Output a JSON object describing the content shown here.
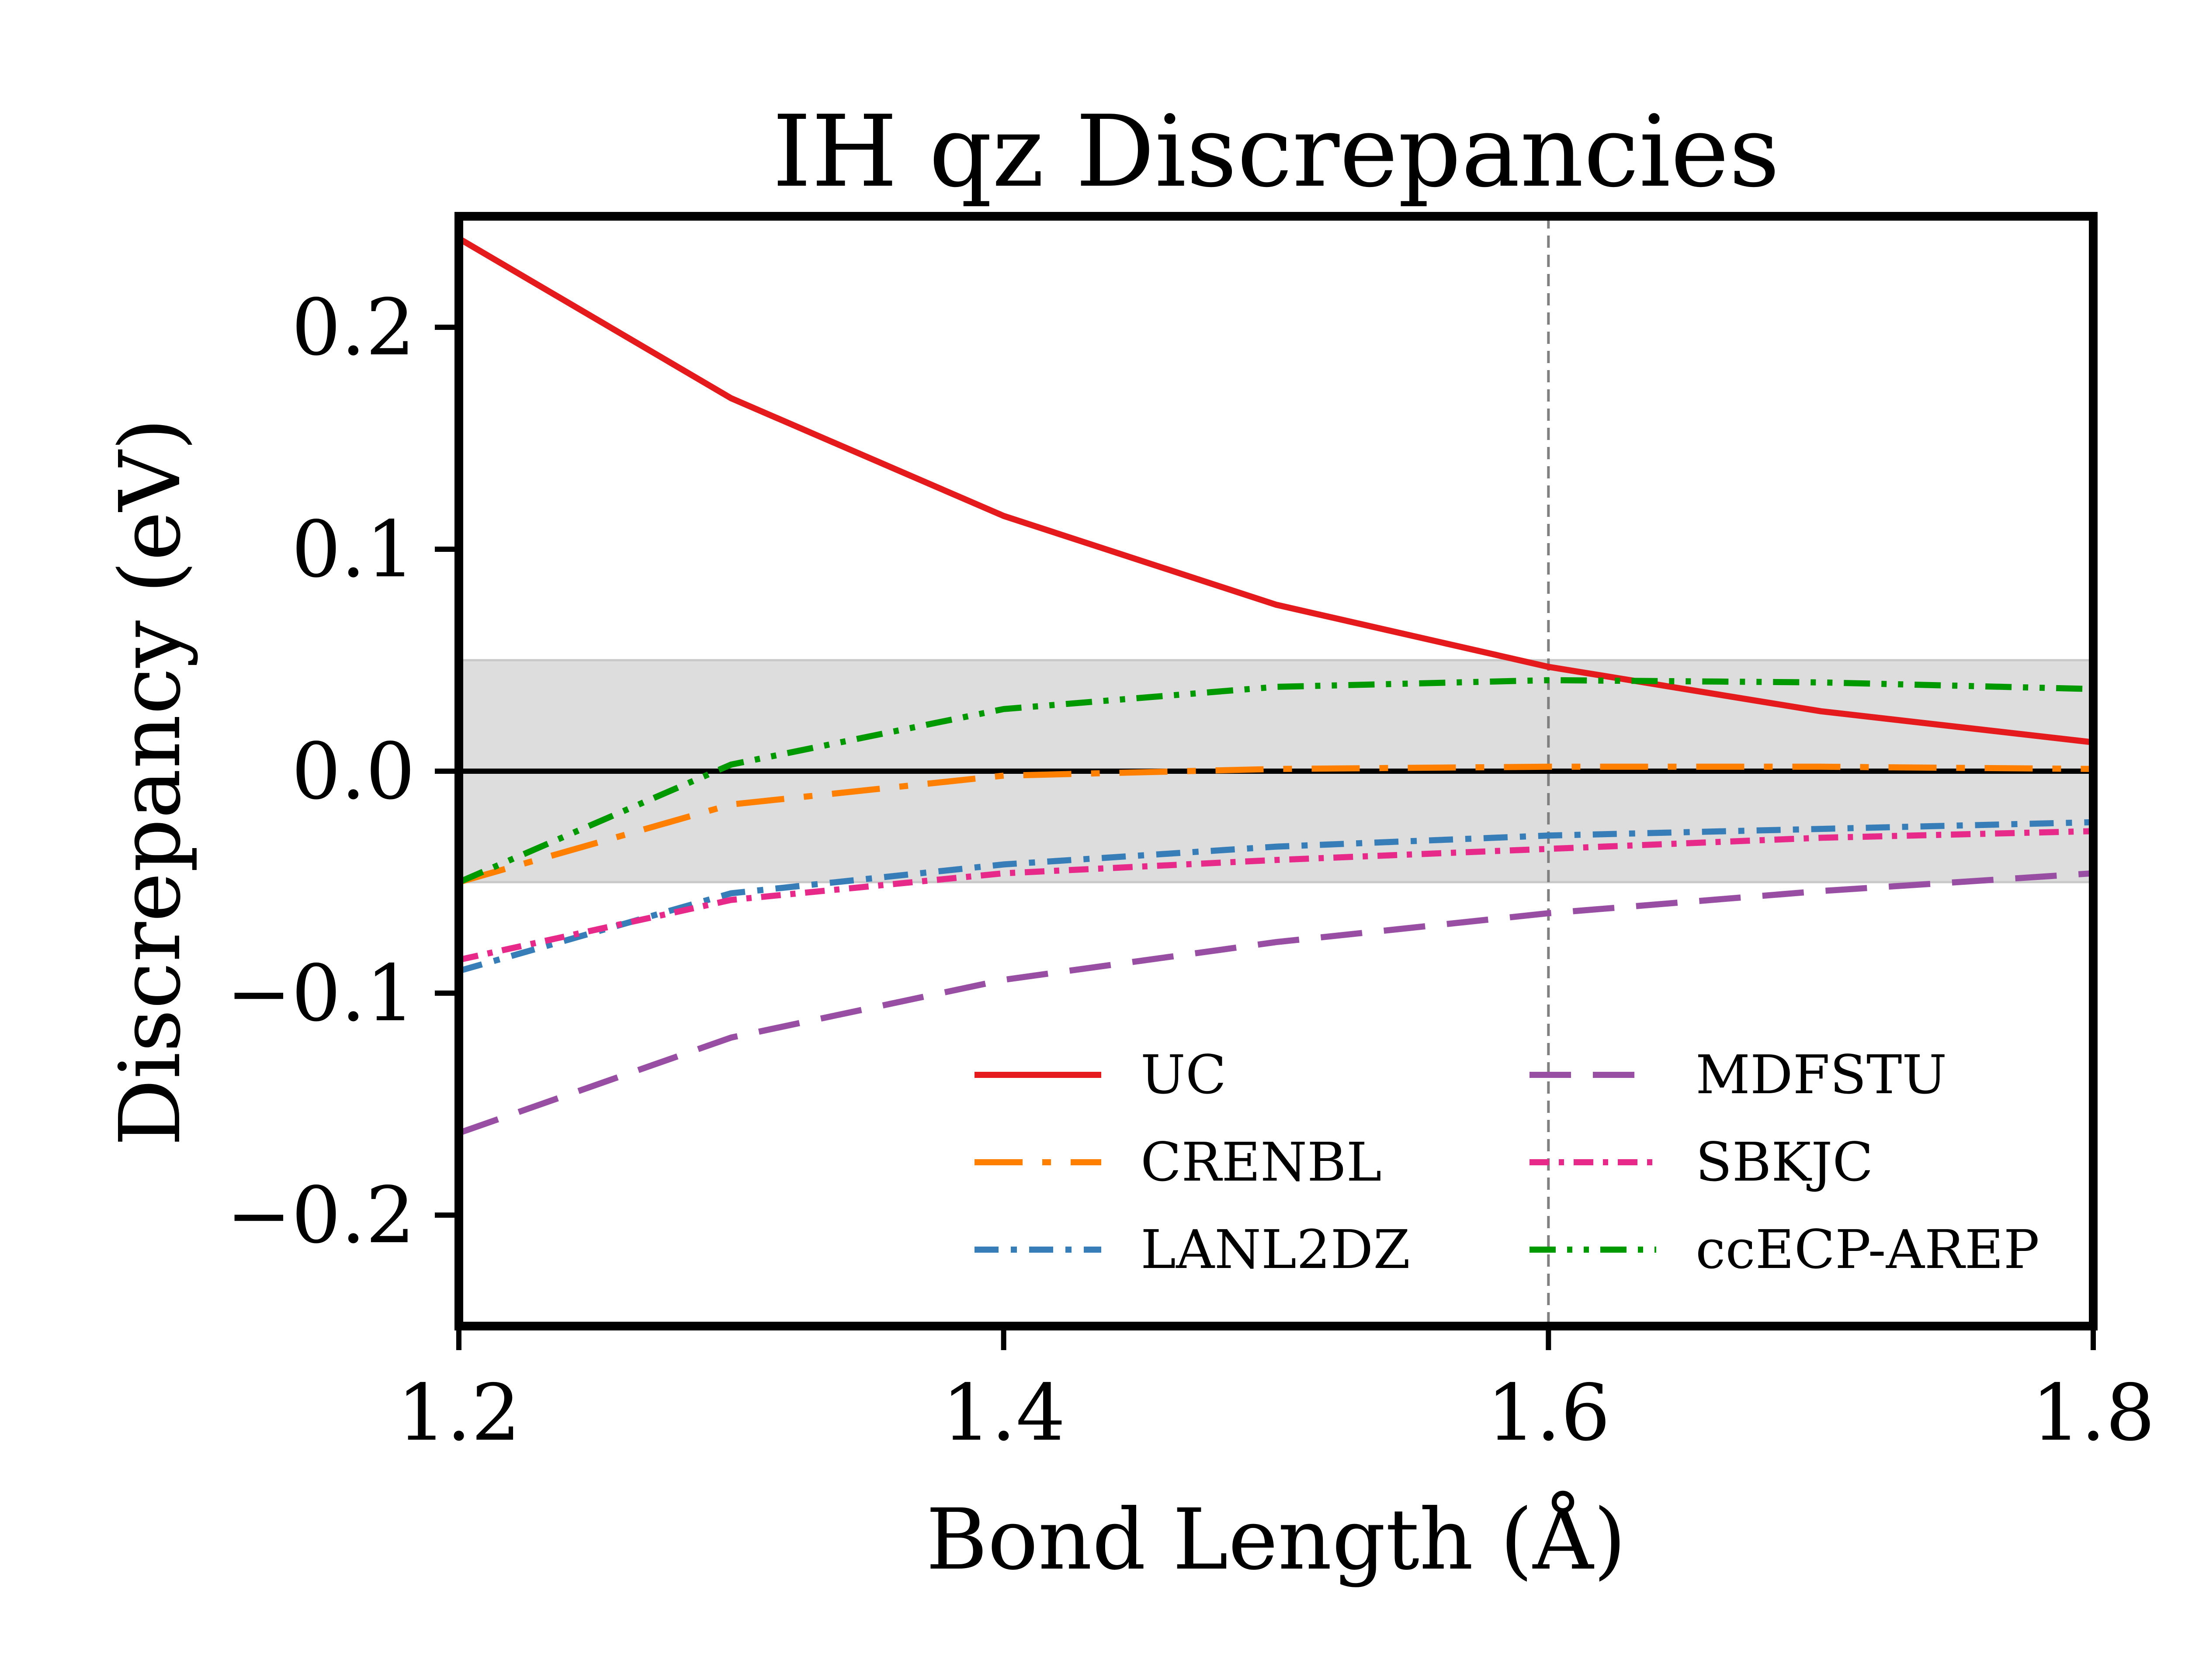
{
  "chart_data": {
    "type": "line",
    "title": "IH qz Discrepancies",
    "xlabel": "Bond Length (Å)",
    "ylabel": "Discrepancy (eV)",
    "xlim": [
      1.2,
      1.8
    ],
    "ylim": [
      -0.25,
      0.25
    ],
    "xticks": [
      1.2,
      1.4,
      1.6,
      1.8
    ],
    "xtick_labels": [
      "1.2",
      "1.4",
      "1.6",
      "1.8"
    ],
    "yticks": [
      -0.2,
      -0.1,
      0.0,
      0.1,
      0.2
    ],
    "ytick_labels": [
      "−0.2",
      "−0.1",
      "0.0",
      "0.1",
      "0.2"
    ],
    "reference_band": [
      -0.05,
      0.05
    ],
    "reference_band_color": "#dddddd",
    "zero_line": 0.0,
    "vertical_reference_x": 1.6,
    "vertical_reference_color": "#808080",
    "grid": false,
    "legend_position": "lower-right",
    "legend_columns": 2,
    "x": [
      1.2,
      1.3,
      1.4,
      1.5,
      1.6,
      1.7,
      1.8
    ],
    "series": [
      {
        "name": "UC",
        "color": "#e41a1c",
        "dash": "solid",
        "values": [
          0.24,
          0.168,
          0.115,
          0.075,
          0.047,
          0.027,
          0.013
        ]
      },
      {
        "name": "CRENBL",
        "color": "#ff7f00",
        "dash": "long-dash-dot",
        "values": [
          -0.05,
          -0.015,
          -0.002,
          0.001,
          0.002,
          0.002,
          0.001
        ]
      },
      {
        "name": "LANL2DZ",
        "color": "#377eb8",
        "dash": "dash-dot",
        "values": [
          -0.09,
          -0.055,
          -0.042,
          -0.034,
          -0.029,
          -0.026,
          -0.023
        ]
      },
      {
        "name": "MDFSTU",
        "color": "#984ea3",
        "dash": "dashed",
        "values": [
          -0.163,
          -0.12,
          -0.094,
          -0.077,
          -0.064,
          -0.054,
          -0.046
        ]
      },
      {
        "name": "SBKJC",
        "color": "#e7298a",
        "dash": "dash-dot-short",
        "values": [
          -0.085,
          -0.058,
          -0.046,
          -0.04,
          -0.035,
          -0.03,
          -0.027
        ]
      },
      {
        "name": "ccECP-AREP",
        "color": "#009900",
        "dash": "dash-dot-dot",
        "values": [
          -0.05,
          0.003,
          0.028,
          0.038,
          0.041,
          0.04,
          0.037
        ]
      }
    ]
  }
}
